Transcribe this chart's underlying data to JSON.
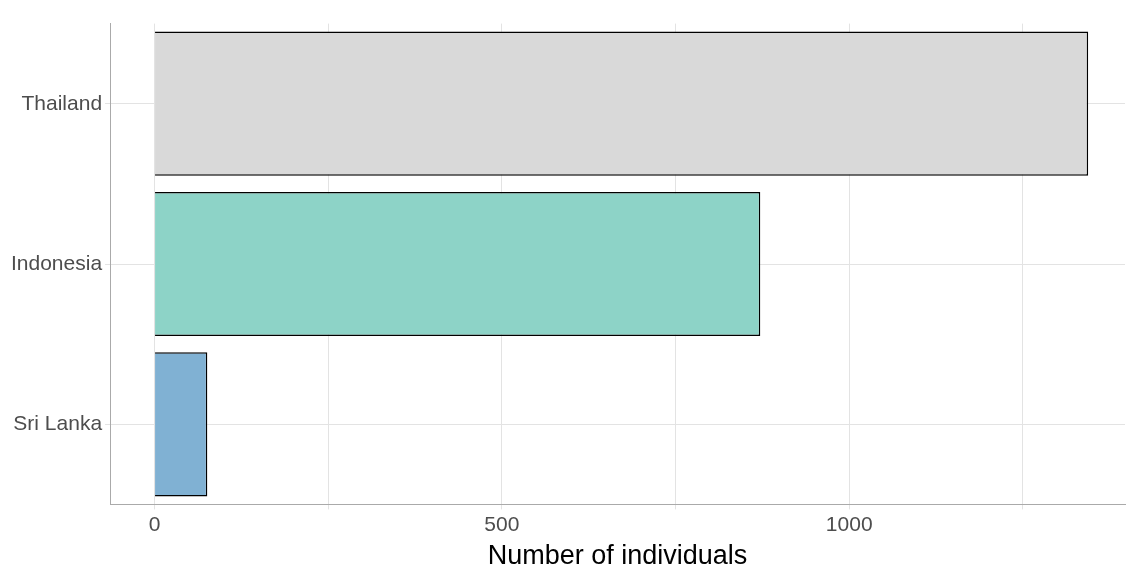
{
  "chart_data": {
    "type": "bar",
    "orientation": "horizontal",
    "categories": [
      "Thailand",
      "Indonesia",
      "Sri Lanka"
    ],
    "values": [
      1344,
      872,
      76
    ],
    "colors": [
      "#d9d9d9",
      "#8dd3c7",
      "#80b1d3"
    ],
    "xlabel": "Number of individuals",
    "xlim": [
      -64,
      1397
    ],
    "xticks": [
      0,
      {
        "value": 250,
        "label": null
      },
      500,
      {
        "value": 750,
        "label": null
      },
      1000,
      {
        "value": 1250,
        "label": null
      }
    ],
    "grid": true,
    "legend": false
  }
}
